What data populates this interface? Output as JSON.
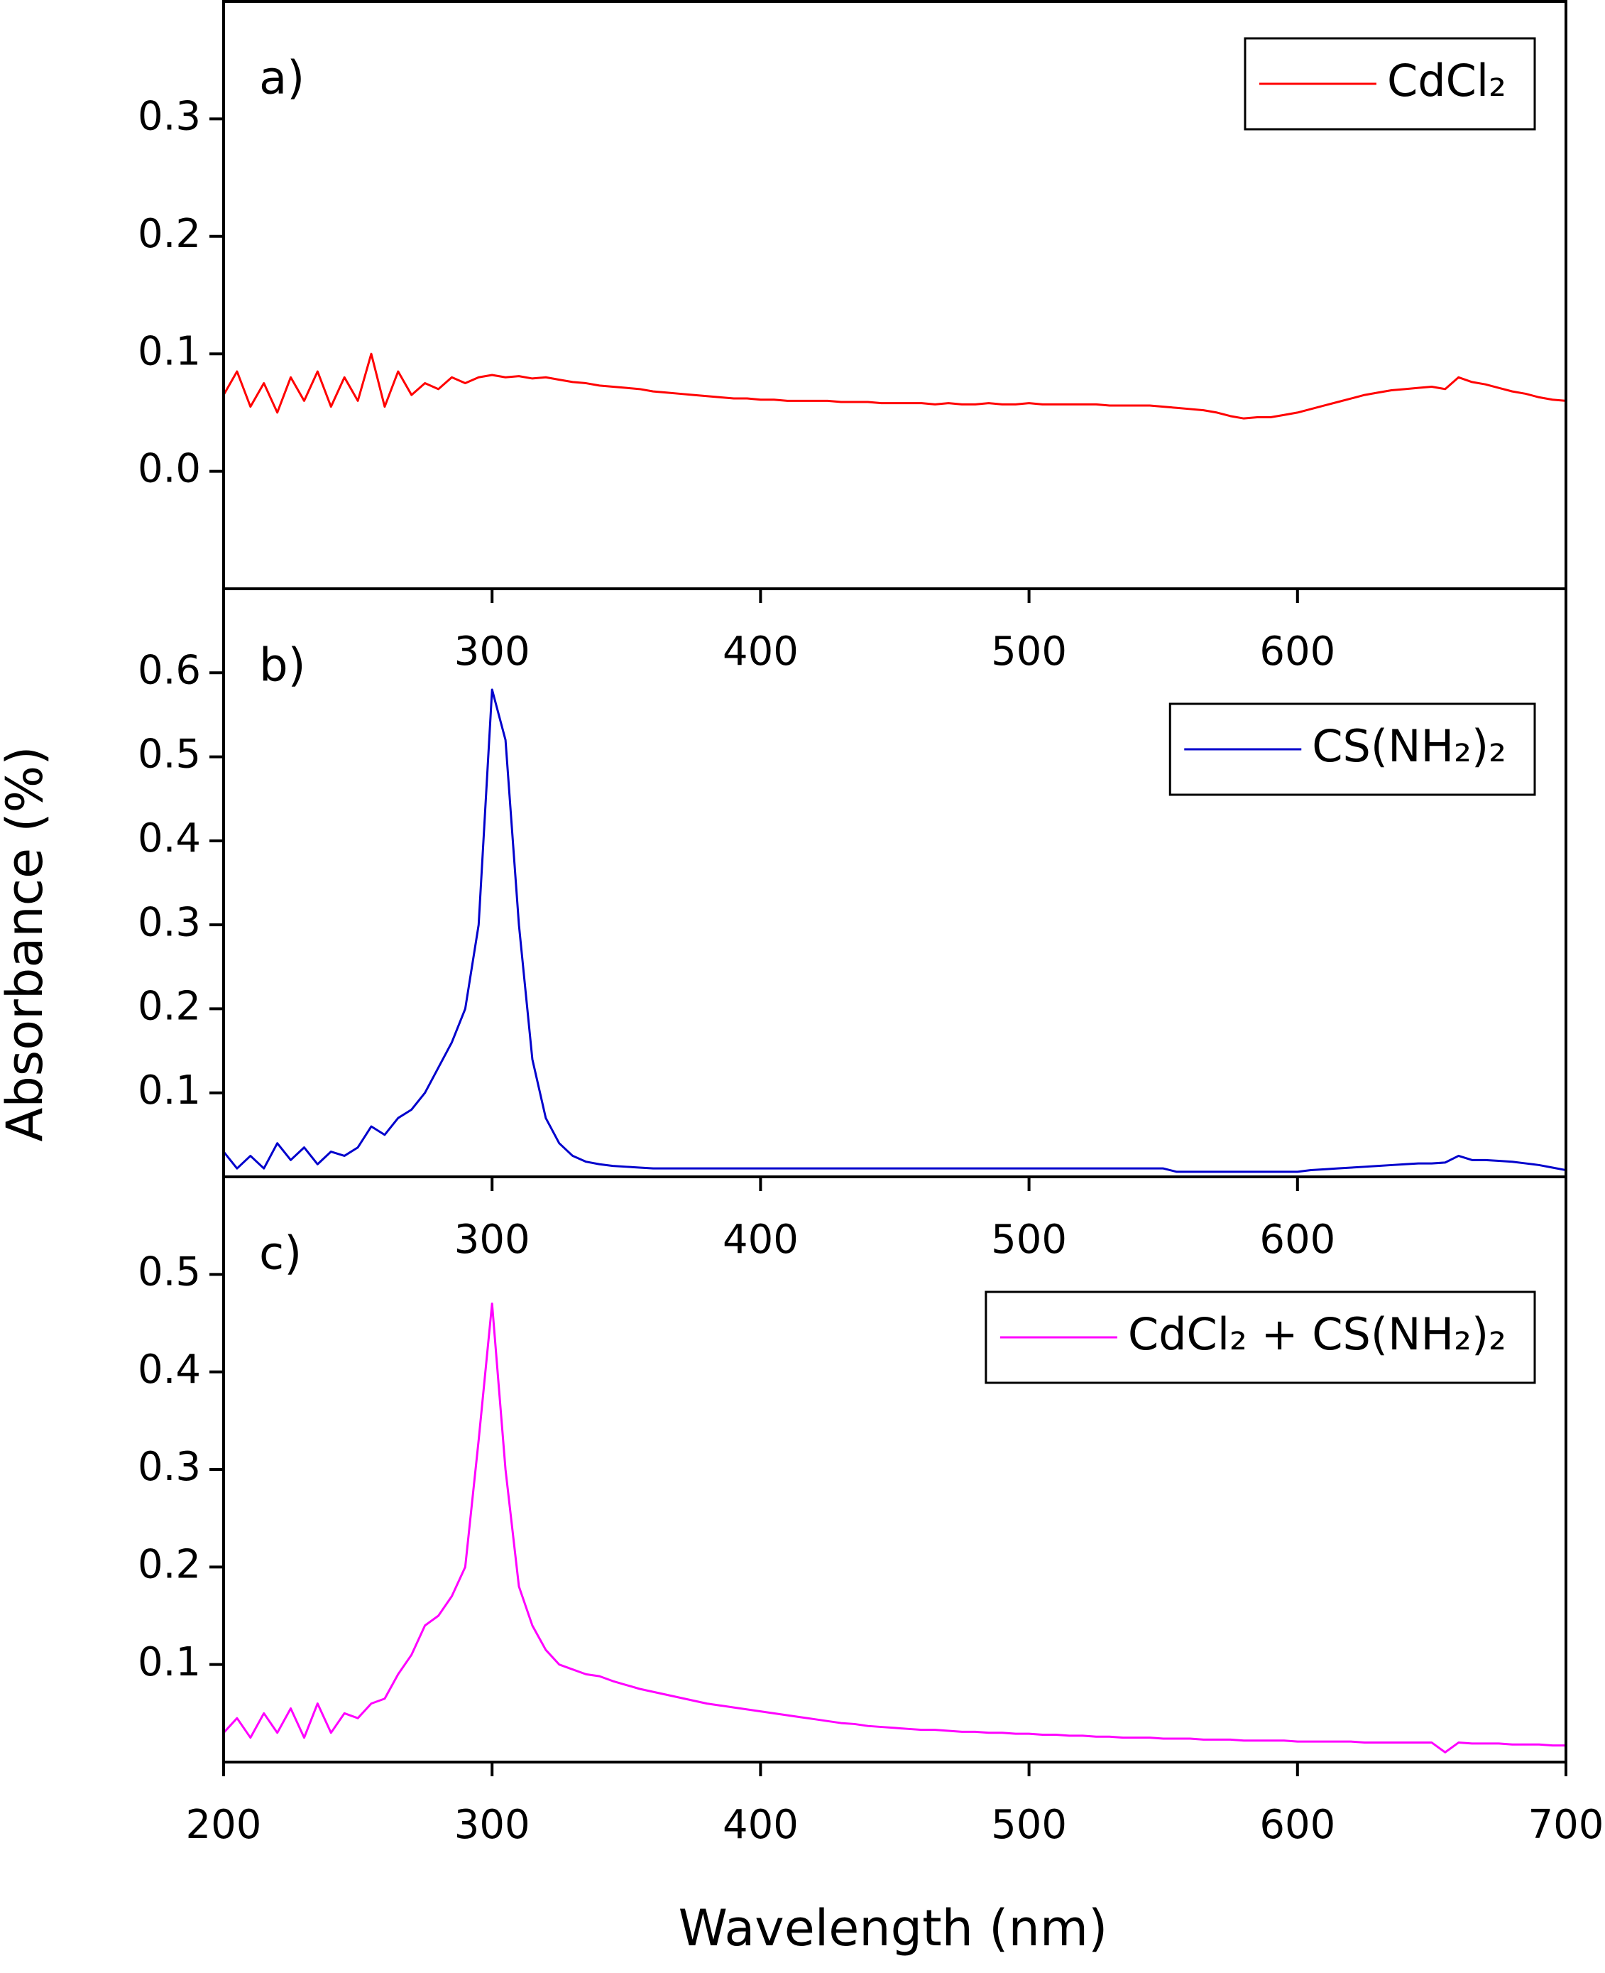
{
  "chart_data": [
    {
      "type": "line",
      "label": "a)",
      "legend": "upper right",
      "xlim": [
        200,
        700
      ],
      "ylim": [
        -0.1,
        0.4
      ],
      "xticks": [
        300,
        400,
        500,
        600
      ],
      "yticks": [
        {
          "value": 0,
          "label": "0.0"
        },
        0.1,
        0.2,
        0.3
      ],
      "x": [
        200,
        205,
        210,
        215,
        220,
        225,
        230,
        235,
        240,
        245,
        250,
        255,
        260,
        265,
        270,
        275,
        280,
        285,
        290,
        295,
        300,
        305,
        310,
        315,
        320,
        325,
        330,
        335,
        340,
        345,
        350,
        355,
        360,
        365,
        370,
        375,
        380,
        385,
        390,
        395,
        400,
        405,
        410,
        415,
        420,
        425,
        430,
        435,
        440,
        445,
        450,
        455,
        460,
        465,
        470,
        475,
        480,
        485,
        490,
        495,
        500,
        505,
        510,
        515,
        520,
        525,
        530,
        535,
        540,
        545,
        550,
        555,
        560,
        565,
        570,
        575,
        580,
        585,
        590,
        595,
        600,
        605,
        610,
        615,
        620,
        625,
        630,
        635,
        640,
        645,
        650,
        655,
        660,
        665,
        670,
        675,
        680,
        685,
        690,
        695,
        700
      ],
      "series": [
        {
          "name": "CdCl₂",
          "color": "#ff0000",
          "values": [
            0.065,
            0.085,
            0.055,
            0.075,
            0.05,
            0.08,
            0.06,
            0.085,
            0.055,
            0.08,
            0.06,
            0.1,
            0.055,
            0.085,
            0.065,
            0.075,
            0.07,
            0.08,
            0.075,
            0.08,
            0.082,
            0.08,
            0.081,
            0.079,
            0.08,
            0.078,
            0.076,
            0.075,
            0.073,
            0.072,
            0.071,
            0.07,
            0.068,
            0.067,
            0.066,
            0.065,
            0.064,
            0.063,
            0.062,
            0.062,
            0.061,
            0.061,
            0.06,
            0.06,
            0.06,
            0.06,
            0.059,
            0.059,
            0.059,
            0.058,
            0.058,
            0.058,
            0.058,
            0.057,
            0.058,
            0.057,
            0.057,
            0.058,
            0.057,
            0.057,
            0.058,
            0.057,
            0.057,
            0.057,
            0.057,
            0.057,
            0.056,
            0.056,
            0.056,
            0.056,
            0.055,
            0.054,
            0.053,
            0.052,
            0.05,
            0.047,
            0.045,
            0.046,
            0.046,
            0.048,
            0.05,
            0.053,
            0.056,
            0.059,
            0.062,
            0.065,
            0.067,
            0.069,
            0.07,
            0.071,
            0.072,
            0.07,
            0.08,
            0.076,
            0.074,
            0.071,
            0.068,
            0.066,
            0.063,
            0.061,
            0.06
          ]
        }
      ]
    },
    {
      "type": "line",
      "label": "b)",
      "legend": "upper right",
      "ylabel": "Absorbance (%)",
      "xlim": [
        200,
        700
      ],
      "ylim": [
        0,
        0.7
      ],
      "xticks": [
        300,
        400,
        500,
        600
      ],
      "yticks": [
        0.1,
        0.2,
        0.3,
        0.4,
        0.5,
        0.6
      ],
      "x": [
        200,
        205,
        210,
        215,
        220,
        225,
        230,
        235,
        240,
        245,
        250,
        255,
        260,
        265,
        270,
        275,
        280,
        285,
        290,
        295,
        300,
        305,
        310,
        315,
        320,
        325,
        330,
        335,
        340,
        345,
        350,
        355,
        360,
        365,
        370,
        375,
        380,
        385,
        390,
        395,
        400,
        405,
        410,
        415,
        420,
        425,
        430,
        435,
        440,
        445,
        450,
        455,
        460,
        465,
        470,
        475,
        480,
        485,
        490,
        495,
        500,
        505,
        510,
        515,
        520,
        525,
        530,
        535,
        540,
        545,
        550,
        555,
        560,
        565,
        570,
        575,
        580,
        585,
        590,
        595,
        600,
        605,
        610,
        615,
        620,
        625,
        630,
        635,
        640,
        645,
        650,
        655,
        660,
        665,
        670,
        675,
        680,
        685,
        690,
        695,
        700
      ],
      "series": [
        {
          "name": "CS(NH₂)₂",
          "color": "#0000cc",
          "values": [
            0.03,
            0.01,
            0.025,
            0.01,
            0.04,
            0.02,
            0.035,
            0.015,
            0.03,
            0.025,
            0.035,
            0.06,
            0.05,
            0.07,
            0.08,
            0.1,
            0.13,
            0.16,
            0.2,
            0.3,
            0.58,
            0.52,
            0.3,
            0.14,
            0.07,
            0.04,
            0.025,
            0.018,
            0.015,
            0.013,
            0.012,
            0.011,
            0.01,
            0.01,
            0.01,
            0.01,
            0.01,
            0.01,
            0.01,
            0.01,
            0.01,
            0.01,
            0.01,
            0.01,
            0.01,
            0.01,
            0.01,
            0.01,
            0.01,
            0.01,
            0.01,
            0.01,
            0.01,
            0.01,
            0.01,
            0.01,
            0.01,
            0.01,
            0.01,
            0.01,
            0.01,
            0.01,
            0.01,
            0.01,
            0.01,
            0.01,
            0.01,
            0.01,
            0.01,
            0.01,
            0.01,
            0.006,
            0.006,
            0.006,
            0.006,
            0.006,
            0.006,
            0.006,
            0.006,
            0.006,
            0.006,
            0.008,
            0.009,
            0.01,
            0.011,
            0.012,
            0.013,
            0.014,
            0.015,
            0.016,
            0.016,
            0.017,
            0.025,
            0.02,
            0.02,
            0.019,
            0.018,
            0.016,
            0.014,
            0.011,
            0.008
          ]
        }
      ]
    },
    {
      "type": "line",
      "label": "c)",
      "legend": "upper right",
      "xlabel": "Wavelength (nm)",
      "xlim": [
        200,
        700
      ],
      "ylim": [
        0,
        0.6
      ],
      "xticks": [
        200,
        300,
        400,
        500,
        600,
        700
      ],
      "yticks": [
        0.1,
        0.2,
        0.3,
        0.4,
        0.5
      ],
      "x": [
        200,
        205,
        210,
        215,
        220,
        225,
        230,
        235,
        240,
        245,
        250,
        255,
        260,
        265,
        270,
        275,
        280,
        285,
        290,
        295,
        300,
        305,
        310,
        315,
        320,
        325,
        330,
        335,
        340,
        345,
        350,
        355,
        360,
        365,
        370,
        375,
        380,
        385,
        390,
        395,
        400,
        405,
        410,
        415,
        420,
        425,
        430,
        435,
        440,
        445,
        450,
        455,
        460,
        465,
        470,
        475,
        480,
        485,
        490,
        495,
        500,
        505,
        510,
        515,
        520,
        525,
        530,
        535,
        540,
        545,
        550,
        555,
        560,
        565,
        570,
        575,
        580,
        585,
        590,
        595,
        600,
        605,
        610,
        615,
        620,
        625,
        630,
        635,
        640,
        645,
        650,
        655,
        660,
        665,
        670,
        675,
        680,
        685,
        690,
        695,
        700
      ],
      "series": [
        {
          "name": "CdCl₂ + CS(NH₂)₂",
          "color": "#ff00ff",
          "values": [
            0.03,
            0.045,
            0.025,
            0.05,
            0.03,
            0.055,
            0.025,
            0.06,
            0.03,
            0.05,
            0.045,
            0.06,
            0.065,
            0.09,
            0.11,
            0.14,
            0.15,
            0.17,
            0.2,
            0.33,
            0.47,
            0.3,
            0.18,
            0.14,
            0.115,
            0.1,
            0.095,
            0.09,
            0.088,
            0.083,
            0.079,
            0.075,
            0.072,
            0.069,
            0.066,
            0.063,
            0.06,
            0.058,
            0.056,
            0.054,
            0.052,
            0.05,
            0.048,
            0.046,
            0.044,
            0.042,
            0.04,
            0.039,
            0.037,
            0.036,
            0.035,
            0.034,
            0.033,
            0.033,
            0.032,
            0.031,
            0.031,
            0.03,
            0.03,
            0.029,
            0.029,
            0.028,
            0.028,
            0.027,
            0.027,
            0.026,
            0.026,
            0.025,
            0.025,
            0.025,
            0.024,
            0.024,
            0.024,
            0.023,
            0.023,
            0.023,
            0.022,
            0.022,
            0.022,
            0.022,
            0.021,
            0.021,
            0.021,
            0.021,
            0.021,
            0.02,
            0.02,
            0.02,
            0.02,
            0.02,
            0.02,
            0.01,
            0.02,
            0.019,
            0.019,
            0.019,
            0.018,
            0.018,
            0.018,
            0.017,
            0.017
          ]
        }
      ]
    }
  ]
}
